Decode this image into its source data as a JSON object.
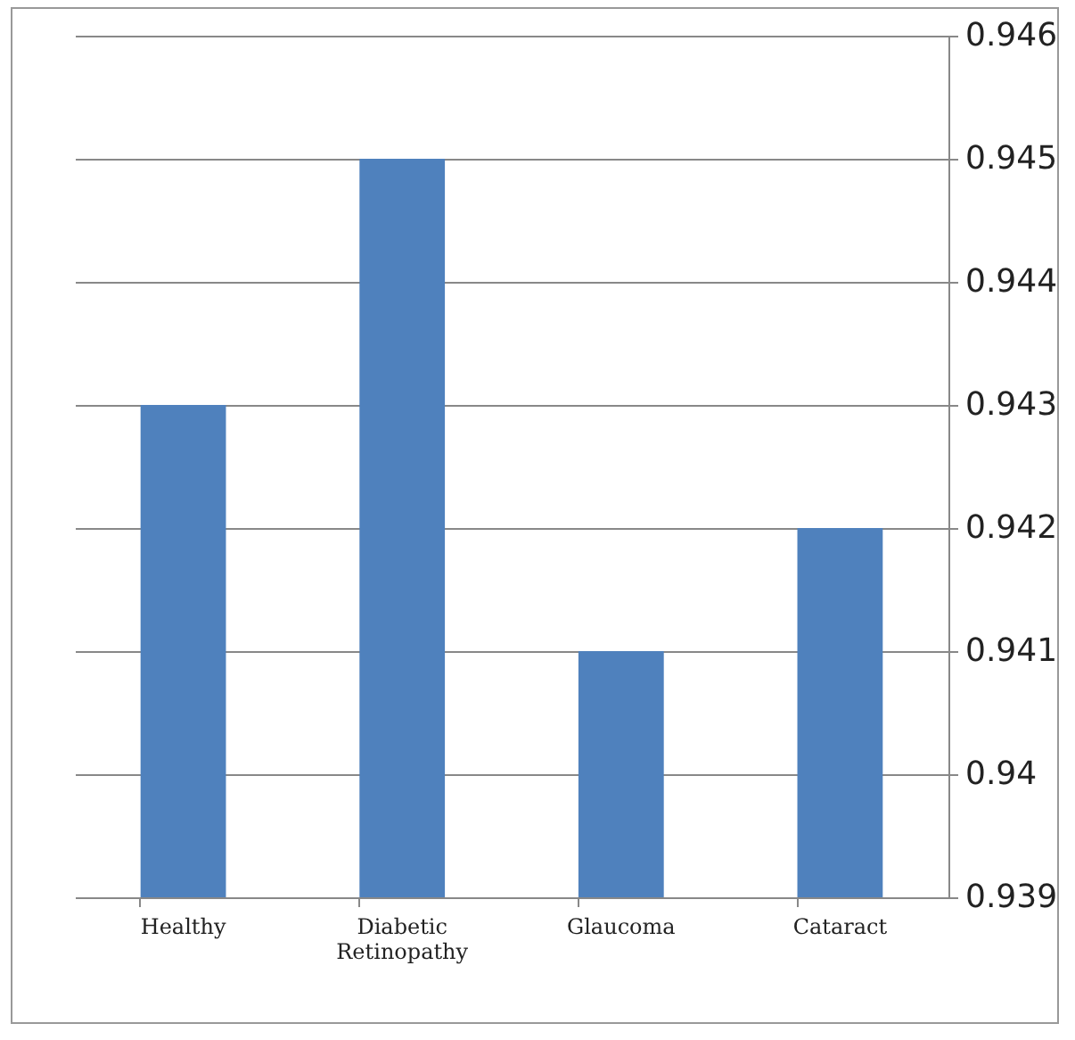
{
  "chart_data": {
    "type": "bar",
    "categories": [
      "Healthy",
      "Diabetic Retinopathy",
      "Glaucoma",
      "Cataract"
    ],
    "values": [
      0.943,
      0.945,
      0.941,
      0.942
    ],
    "color": "#4f81bd",
    "ylim": [
      0.939,
      0.946
    ],
    "yticks": [
      0.939,
      0.94,
      0.941,
      0.942,
      0.943,
      0.944,
      0.945,
      0.946
    ],
    "grid": "y"
  }
}
